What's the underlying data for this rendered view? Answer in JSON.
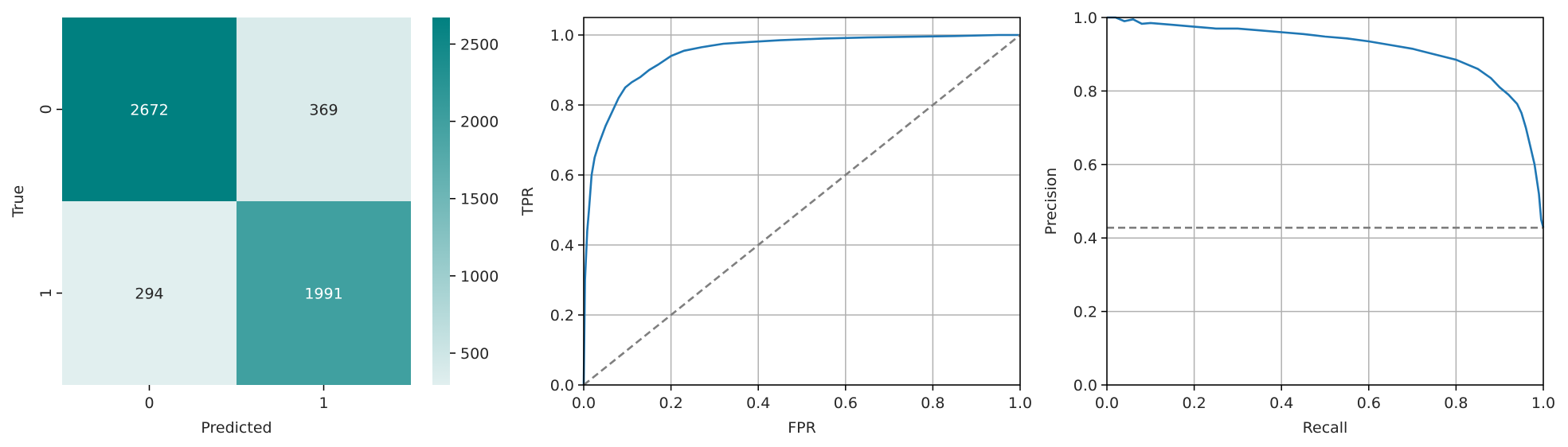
{
  "colors": {
    "cmap_low": "#e1efef",
    "cmap_high": "#008080",
    "curve": "#1f77b4",
    "reference": "#7f7f7f"
  },
  "chart_data": [
    {
      "type": "heatmap",
      "xlabel": "Predicted",
      "ylabel": "True",
      "x_categories": [
        "0",
        "1"
      ],
      "y_categories": [
        "0",
        "1"
      ],
      "values": [
        [
          2672,
          369
        ],
        [
          294,
          1991
        ]
      ],
      "colorbar": {
        "ticks": [
          "500",
          "1000",
          "1500",
          "2000",
          "2500"
        ],
        "range": [
          294,
          2672
        ]
      }
    },
    {
      "type": "line",
      "xlabel": "FPR",
      "ylabel": "TPR",
      "xlim": [
        0,
        1
      ],
      "ylim": [
        0,
        1.05
      ],
      "xticks": [
        "0.0",
        "0.2",
        "0.4",
        "0.6",
        "0.8",
        "1.0"
      ],
      "yticks": [
        "0.0",
        "0.2",
        "0.4",
        "0.6",
        "0.8",
        "1.0"
      ],
      "grid": true,
      "series": [
        {
          "style": "solid",
          "x": [
            0,
            0.003,
            0.008,
            0.012,
            0.018,
            0.025,
            0.035,
            0.05,
            0.065,
            0.08,
            0.095,
            0.11,
            0.13,
            0.15,
            0.17,
            0.2,
            0.23,
            0.27,
            0.32,
            0.38,
            0.45,
            0.55,
            0.65,
            0.75,
            0.85,
            0.95,
            1
          ],
          "y": [
            0,
            0.3,
            0.44,
            0.5,
            0.6,
            0.65,
            0.69,
            0.74,
            0.78,
            0.82,
            0.85,
            0.865,
            0.88,
            0.9,
            0.915,
            0.94,
            0.955,
            0.965,
            0.975,
            0.98,
            0.985,
            0.99,
            0.993,
            0.995,
            0.997,
            1.0,
            1.0
          ]
        },
        {
          "style": "dashed",
          "x": [
            0,
            1
          ],
          "y": [
            0,
            1
          ]
        }
      ]
    },
    {
      "type": "line",
      "xlabel": "Recall",
      "ylabel": "Precision",
      "xlim": [
        0,
        1
      ],
      "ylim": [
        0,
        1
      ],
      "xticks": [
        "0.0",
        "0.2",
        "0.4",
        "0.6",
        "0.8",
        "1.0"
      ],
      "yticks": [
        "0.0",
        "0.2",
        "0.4",
        "0.6",
        "0.8",
        "1.0"
      ],
      "grid": true,
      "series": [
        {
          "style": "solid",
          "x": [
            0,
            0.02,
            0.04,
            0.06,
            0.08,
            0.1,
            0.15,
            0.2,
            0.25,
            0.3,
            0.35,
            0.4,
            0.45,
            0.5,
            0.55,
            0.6,
            0.65,
            0.7,
            0.75,
            0.8,
            0.85,
            0.88,
            0.9,
            0.92,
            0.94,
            0.95,
            0.96,
            0.97,
            0.98,
            0.99,
            0.995,
            1
          ],
          "y": [
            1.0,
            1.0,
            0.99,
            0.995,
            0.983,
            0.985,
            0.98,
            0.975,
            0.97,
            0.97,
            0.965,
            0.96,
            0.955,
            0.948,
            0.943,
            0.935,
            0.925,
            0.915,
            0.9,
            0.885,
            0.86,
            0.835,
            0.81,
            0.79,
            0.765,
            0.74,
            0.7,
            0.65,
            0.6,
            0.52,
            0.45,
            0.428
          ]
        },
        {
          "style": "dashed",
          "x": [
            0,
            1
          ],
          "y": [
            0.428,
            0.428
          ]
        }
      ]
    }
  ]
}
